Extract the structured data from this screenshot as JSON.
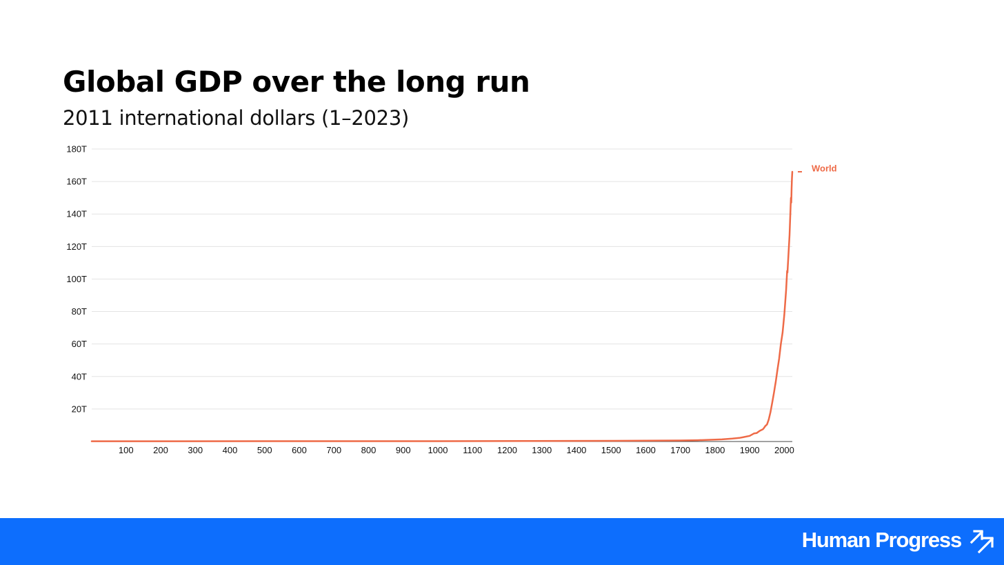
{
  "title": "Global GDP over the long run",
  "subtitle": "2011 international dollars (1–2023)",
  "brand": {
    "name": "Human Progress",
    "icon": "trend-arrows-icon",
    "color": "#0d6efd"
  },
  "chart_data": {
    "type": "line",
    "title": "Global GDP over the long run",
    "subtitle": "2011 international dollars (1–2023)",
    "xlabel": "",
    "ylabel": "",
    "xlim": [
      1,
      2023
    ],
    "ylim": [
      0,
      180
    ],
    "y_unit": "T",
    "x_ticks": [
      100,
      200,
      300,
      400,
      500,
      600,
      700,
      800,
      900,
      1000,
      1100,
      1200,
      1300,
      1400,
      1500,
      1600,
      1700,
      1800,
      1900,
      2000
    ],
    "x_tick_labels": [
      "100",
      "200",
      "300",
      "400",
      "500",
      "600",
      "700",
      "800",
      "900",
      "1000",
      "1100",
      "1200",
      "1300",
      "1400",
      "1500",
      "1600",
      "1700",
      "1800",
      "1900",
      "2000"
    ],
    "y_ticks": [
      20,
      40,
      60,
      80,
      100,
      120,
      140,
      160,
      180
    ],
    "y_tick_labels": [
      "20T",
      "40T",
      "60T",
      "80T",
      "100T",
      "120T",
      "140T",
      "160T",
      "180T"
    ],
    "grid": true,
    "legend_placement": "right-end-of-line",
    "series": [
      {
        "name": "World",
        "color": "#ee6a47",
        "x": [
          1,
          1000,
          1500,
          1600,
          1700,
          1750,
          1800,
          1820,
          1850,
          1870,
          1880,
          1900,
          1913,
          1920,
          1929,
          1938,
          1940,
          1945,
          1950,
          1955,
          1960,
          1965,
          1970,
          1973,
          1975,
          1980,
          1985,
          1990,
          1995,
          2000,
          2005,
          2008,
          2009,
          2010,
          2015,
          2019,
          2020,
          2021,
          2022,
          2023
        ],
        "y": [
          0.18,
          0.2,
          0.43,
          0.56,
          0.63,
          0.8,
          1.2,
          1.3,
          1.8,
          2.2,
          2.6,
          3.5,
          5.0,
          5.2,
          6.6,
          7.5,
          8.0,
          9.5,
          10.5,
          13.5,
          18.0,
          24.0,
          30.0,
          34.0,
          36.5,
          44.0,
          51.0,
          60.0,
          67.0,
          78.0,
          93.0,
          105.0,
          104.0,
          108.0,
          127.0,
          150.0,
          147.0,
          156.0,
          162.0,
          166.0
        ]
      }
    ]
  }
}
